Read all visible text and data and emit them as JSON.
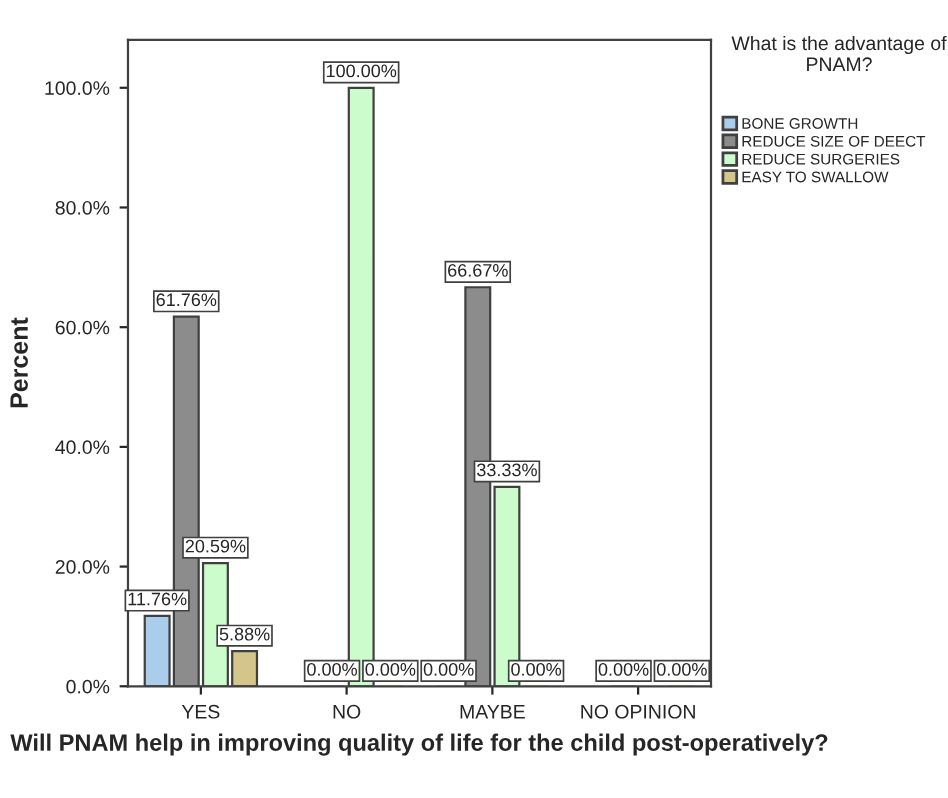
{
  "chart_data": {
    "type": "bar",
    "xlabel": "Will PNAM help in improving quality of life for the child post-operatively?",
    "ylabel": "Percent",
    "legend_title": "What is the advantage of PNAM?",
    "categories": [
      "YES",
      "NO",
      "MAYBE",
      "NO OPINION"
    ],
    "series": [
      {
        "name": "BONE GROWTH",
        "color": "#a9cdea",
        "values": [
          11.76,
          null,
          0.0,
          null
        ],
        "value_labels": [
          "11.76%",
          null,
          "0.00%",
          null
        ]
      },
      {
        "name": "REDUCE SIZE OF DEECT",
        "color": "#8c8c8c",
        "values": [
          61.76,
          0.0,
          66.67,
          0.0
        ],
        "value_labels": [
          "61.76%",
          "0.00%",
          "66.67%",
          "0.00%"
        ]
      },
      {
        "name": "REDUCE SURGERIES",
        "color": "#ccfccc",
        "values": [
          20.59,
          100.0,
          33.33,
          null
        ],
        "value_labels": [
          "20.59%",
          "100.00%",
          "33.33%",
          null
        ]
      },
      {
        "name": "EASY TO SWALLOW",
        "color": "#d4c68a",
        "values": [
          5.88,
          0.0,
          0.0,
          0.0
        ],
        "value_labels": [
          "5.88%",
          "0.00%",
          "0.00%",
          "0.00%"
        ]
      }
    ],
    "ylim": [
      0,
      108
    ],
    "yticks": [
      {
        "value": 0,
        "label": "0.0%"
      },
      {
        "value": 20,
        "label": "20.0%"
      },
      {
        "value": 40,
        "label": "40.0%"
      },
      {
        "value": 60,
        "label": "60.0%"
      },
      {
        "value": 80,
        "label": "80.0%"
      },
      {
        "value": 100,
        "label": "100.0%"
      }
    ],
    "grid": false,
    "legend": "right"
  }
}
